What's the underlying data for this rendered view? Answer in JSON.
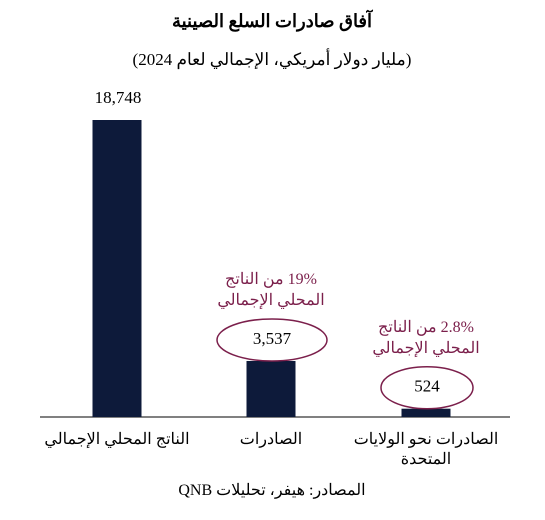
{
  "chart_data": {
    "type": "bar",
    "title": "آفاق صادرات السلع الصينية",
    "subtitle": "(مليار دولار أمريكي، الإجمالي لعام 2024)",
    "categories": [
      "الناتج المحلي الإجمالي",
      "الصادرات",
      "الصادرات نحو الولايات المتحدة"
    ],
    "values": [
      18748,
      3537,
      524
    ],
    "value_labels": [
      "18,748",
      "3,537",
      "524"
    ],
    "annotations": [
      null,
      "19% من الناتج المحلي الإجمالي",
      "2.8% من الناتج المحلي الإجمالي"
    ],
    "color": "#0d1a3a",
    "annotation_color": "#7b1f4b",
    "source": "المصادر: هيفر، تحليلات QNB"
  }
}
